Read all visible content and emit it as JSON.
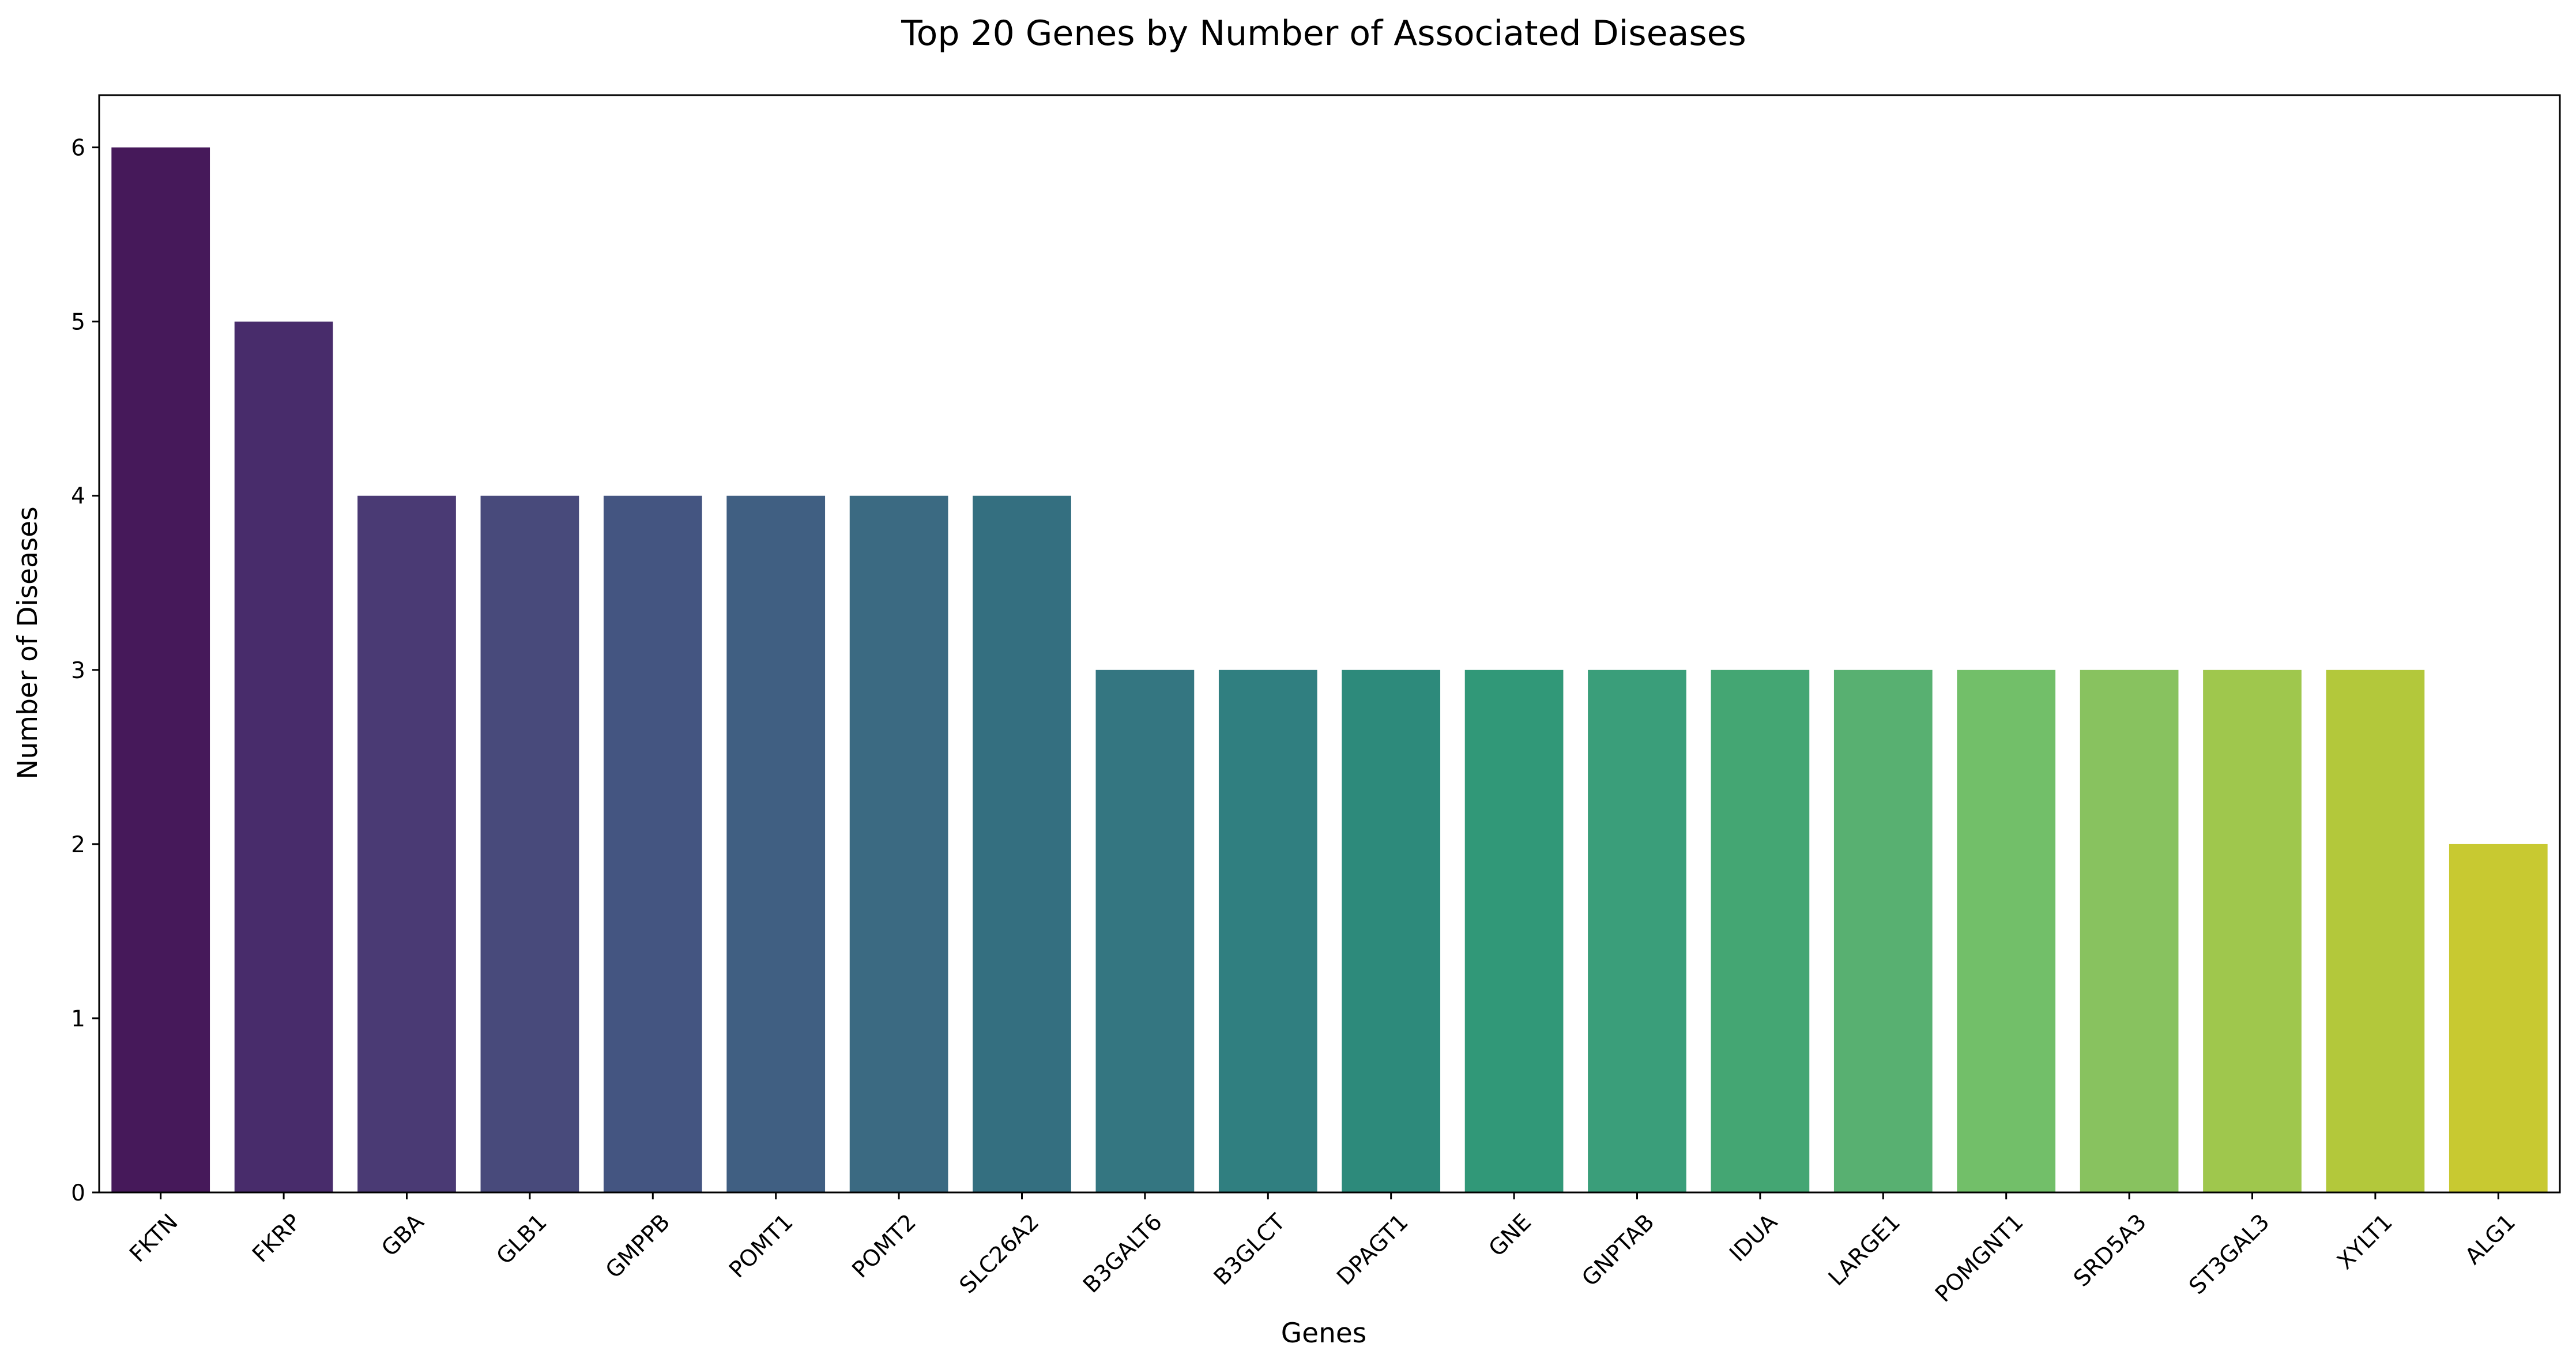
{
  "chart_data": {
    "type": "bar",
    "title": "Top 20 Genes by Number of Associated Diseases",
    "xlabel": "Genes",
    "ylabel": "Number of Diseases",
    "categories": [
      "FKTN",
      "FKRP",
      "GBA",
      "GLB1",
      "GMPPB",
      "POMT1",
      "POMT2",
      "SLC26A2",
      "B3GALT6",
      "B3GLCT",
      "DPAGT1",
      "GNE",
      "GNPTAB",
      "IDUA",
      "LARGE1",
      "POMGNT1",
      "SRD5A3",
      "ST3GAL3",
      "XYLT1",
      "ALG1"
    ],
    "values": [
      6,
      5,
      4,
      4,
      4,
      4,
      4,
      4,
      3,
      3,
      3,
      3,
      3,
      3,
      3,
      3,
      3,
      3,
      3,
      2
    ],
    "ylim": [
      0,
      6.3
    ],
    "yticks": [
      0,
      1,
      2,
      3,
      4,
      5,
      6
    ],
    "colormap": "viridis",
    "colors": [
      "#46195a",
      "#482c6b",
      "#4a3a74",
      "#484a7b",
      "#445581",
      "#405f82",
      "#3b6a82",
      "#346f80",
      "#347681",
      "#307f80",
      "#2d8a7b",
      "#319878",
      "#3a9e7a",
      "#44a673",
      "#58b071",
      "#72bf69",
      "#88c25f",
      "#9fc74d",
      "#b3c83b",
      "#c8c931"
    ],
    "grid": false,
    "legend": false
  }
}
